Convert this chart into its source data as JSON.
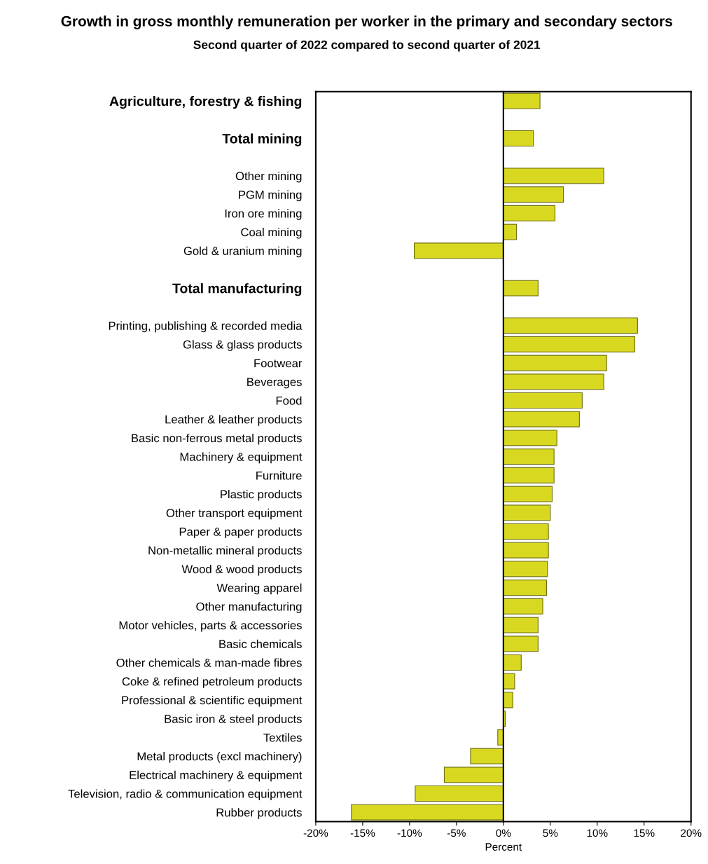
{
  "chart_data": {
    "type": "bar",
    "orientation": "horizontal",
    "title": "Growth in gross monthly remuneration per worker in the primary and secondary sectors",
    "subtitle": "Second quarter of 2022 compared to second quarter of 2021",
    "xlabel": "Percent",
    "categories": [
      "Agriculture, forestry & fishing",
      null,
      "Total mining",
      null,
      "Other mining",
      "PGM mining",
      "Iron ore mining",
      "Coal mining",
      "Gold & uranium mining",
      null,
      "Total manufacturing",
      null,
      "Printing, publishing & recorded media",
      "Glass & glass products",
      "Footwear",
      "Beverages",
      "Food",
      "Leather & leather products",
      "Basic non-ferrous metal products",
      "Machinery & equipment",
      "Furniture",
      "Plastic products",
      "Other transport equipment",
      "Paper & paper products",
      "Non-metallic mineral products",
      "Wood & wood products",
      "Wearing apparel",
      "Other manufacturing",
      "Motor vehicles, parts & accessories",
      "Basic chemicals",
      "Other chemicals & man-made fibres",
      "Coke & refined petroleum products",
      "Professional & scientific equipment",
      "Basic iron & steel products",
      "Textiles",
      "Metal products (excl machinery)",
      "Electrical machinery & equipment",
      "Television, radio & communication equipment",
      "Rubber products"
    ],
    "values": [
      3.9,
      null,
      3.2,
      null,
      10.7,
      6.4,
      5.5,
      1.4,
      -9.5,
      null,
      3.7,
      null,
      14.3,
      14.0,
      11.0,
      10.7,
      8.4,
      8.1,
      5.7,
      5.4,
      5.4,
      5.2,
      5.0,
      4.8,
      4.8,
      4.7,
      4.6,
      4.2,
      3.7,
      3.7,
      1.9,
      1.2,
      1.0,
      0.2,
      -0.6,
      -3.5,
      -6.3,
      -9.4,
      -16.2
    ],
    "color": "#d8d820",
    "xlim": [
      -20,
      20
    ],
    "xticks": [
      {
        "value": -20,
        "label": "-20%"
      },
      {
        "value": -15,
        "label": "-15%"
      },
      {
        "value": -10,
        "label": "-10%"
      },
      {
        "value": -5,
        "label": "-5%"
      },
      {
        "value": 0,
        "label": "0%"
      },
      {
        "value": 5,
        "label": "5%"
      },
      {
        "value": 10,
        "label": "10%"
      },
      {
        "value": 15,
        "label": "15%"
      },
      {
        "value": 20,
        "label": "20%"
      }
    ],
    "legend": false
  }
}
